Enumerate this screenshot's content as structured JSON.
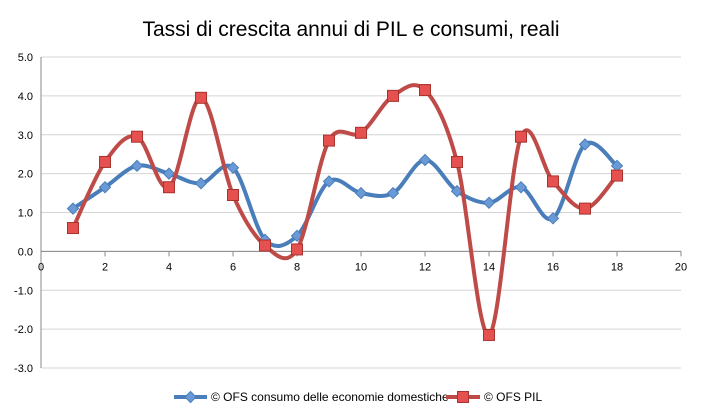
{
  "chart_data": {
    "type": "line",
    "title": "Tassi di crescita annui di PIL e consumi, reali",
    "xlabel": "",
    "ylabel": "",
    "xlim": [
      0,
      20
    ],
    "ylim": [
      -3,
      5
    ],
    "x_ticks": [
      0,
      2,
      4,
      6,
      8,
      10,
      12,
      14,
      16,
      18,
      20
    ],
    "y_ticks": [
      5,
      4,
      3,
      2,
      1,
      0,
      -1,
      -2,
      -3
    ],
    "x_tick_labels": [
      "0",
      "2",
      "4",
      "6",
      "8",
      "10",
      "12",
      "14",
      "16",
      "18",
      "20"
    ],
    "y_tick_labels": [
      "5.0",
      "4.0",
      "3.0",
      "2.0",
      "1.0",
      "0.0",
      "-1.0",
      "-2.0",
      "-3.0"
    ],
    "grid": true,
    "smooth": true,
    "legend_position": "bottom",
    "series": [
      {
        "name": "© OFS consumo delle economie domestiche",
        "color": "#4a7ebb",
        "marker": "diamond",
        "x": [
          1,
          2,
          3,
          4,
          5,
          6,
          7,
          8,
          9,
          10,
          11,
          12,
          13,
          14,
          15,
          16,
          17,
          18
        ],
        "values": [
          1.1,
          1.65,
          2.2,
          2.0,
          1.75,
          2.15,
          0.3,
          0.4,
          1.8,
          1.5,
          1.5,
          2.35,
          1.55,
          1.25,
          1.65,
          0.85,
          2.75,
          2.2
        ]
      },
      {
        "name": "© OFS PIL",
        "color": "#be4b48",
        "marker": "square",
        "x": [
          1,
          2,
          3,
          4,
          5,
          6,
          7,
          8,
          9,
          10,
          11,
          12,
          13,
          14,
          15,
          16,
          17,
          18
        ],
        "values": [
          0.6,
          2.3,
          2.95,
          1.65,
          3.95,
          1.45,
          0.15,
          0.05,
          2.85,
          3.05,
          4.0,
          4.15,
          2.3,
          -2.15,
          2.95,
          1.8,
          1.1,
          1.95
        ]
      }
    ]
  }
}
